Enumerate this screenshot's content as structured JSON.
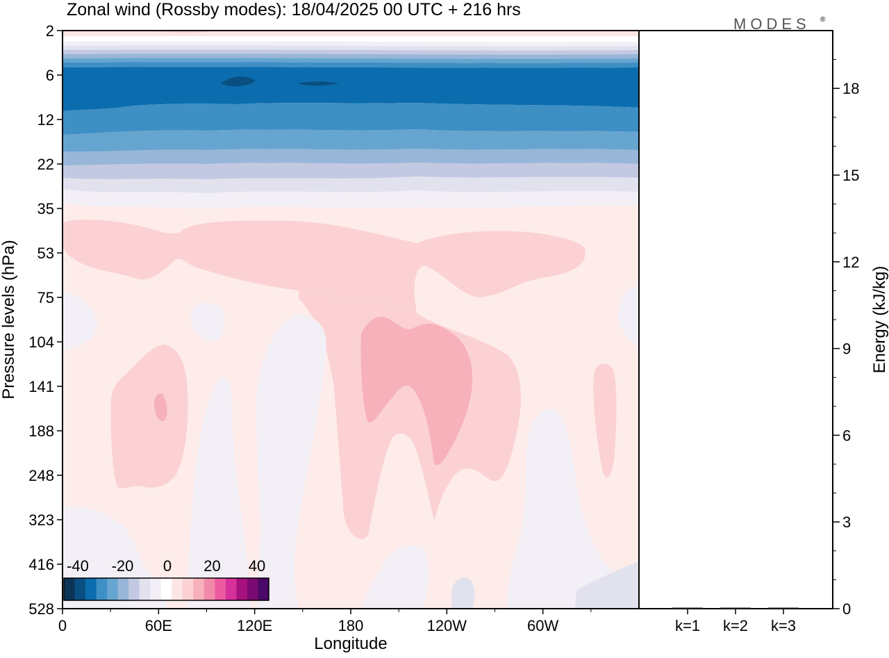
{
  "chart_data": [
    {
      "type": "heatmap",
      "title": "Zonal wind (Rossby modes):  18/04/2025  00 UTC  + 216 hrs",
      "xlabel": "Longitude",
      "ylabel": "Pressure levels (hPa)",
      "x_ticks": [
        "0",
        "60E",
        "120E",
        "180",
        "120W",
        "60W"
      ],
      "x_tick_values": [
        0,
        60,
        120,
        180,
        240,
        300
      ],
      "xlim": [
        0,
        360
      ],
      "y_ticks": [
        "2",
        "6",
        "12",
        "22",
        "35",
        "53",
        "75",
        "104",
        "141",
        "188",
        "248",
        "323",
        "416",
        "528"
      ],
      "y_scale": "categorical pressure levels, top to bottom",
      "colorbar": {
        "tick_labels": [
          "-40",
          "-20",
          "0",
          "20",
          "40"
        ],
        "colors": [
          "#0c3456",
          "#0a4f82",
          "#0b6dae",
          "#3d8fc4",
          "#66a5cf",
          "#98b6d8",
          "#c3c9e2",
          "#e2e2ef",
          "#f3eff6",
          "#ffffff",
          "#fde5e5",
          "#fbd1d4",
          "#f7b1bb",
          "#f389a8",
          "#ec5ba0",
          "#d6309a",
          "#a6117d",
          "#7a0a71",
          "#4a0868"
        ]
      },
      "regions_by_band": [
        {
          "levels": "2-4",
          "value_range": "+5 to -10 m/s",
          "appearance": "thin pink and pale blue stripes"
        },
        {
          "levels": "6-9",
          "value_range": "-35 to -30 m/s",
          "appearance": "dark blue jet core with darker patches near 120E and 160E"
        },
        {
          "levels": "10-26",
          "value_range": "-25 to -5 m/s",
          "appearance": "banded blue shades weakening downward"
        },
        {
          "levels": "30-35",
          "value_range": "-5 to 0 m/s",
          "appearance": "pale lavender"
        },
        {
          "levels": "45-528",
          "value_range": "0 to +15 m/s",
          "appearance": "light pink with stronger pink maxima near 60E and 180-140W"
        }
      ]
    },
    {
      "type": "bar",
      "ylabel": "Energy (kJ/kg)",
      "categories": [
        "k=1",
        "k=2",
        "k=3"
      ],
      "values": [
        0.02,
        0.01,
        0.005
      ],
      "ylim": [
        0,
        20
      ],
      "y_ticks": [
        "0",
        "3",
        "6",
        "9",
        "12",
        "15",
        "18"
      ]
    }
  ],
  "brand": {
    "name": "MODES",
    "mark": "®"
  }
}
